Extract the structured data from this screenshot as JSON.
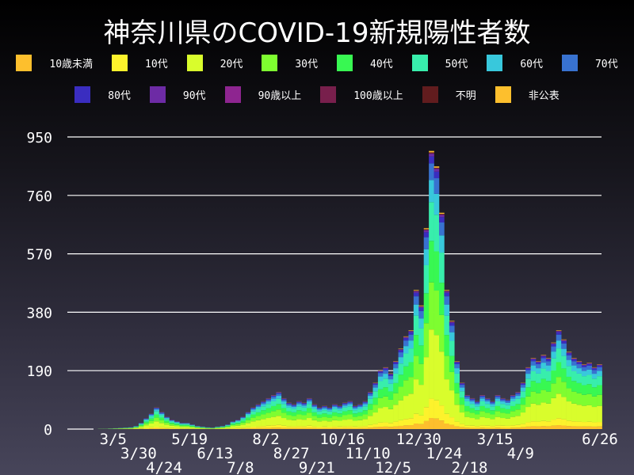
{
  "chart_data": {
    "type": "bar",
    "stacked": true,
    "title": "神奈川県のCOVID-19新規陽性者数",
    "xlabel": "",
    "ylabel": "",
    "ylim": [
      0,
      1000
    ],
    "yticks": [
      0,
      190,
      380,
      570,
      760,
      950
    ],
    "xticks": [
      "3/5",
      "3/30",
      "4/24",
      "5/19",
      "6/13",
      "7/8",
      "8/2",
      "8/27",
      "9/21",
      "10/16",
      "11/10",
      "12/5",
      "12/30",
      "1/24",
      "2/18",
      "3/15",
      "4/9",
      "6/26"
    ],
    "x_start": "2020-01-20",
    "x_end": "2021-06-26",
    "x_step_days": 5,
    "grid": "horizontal",
    "legend_position": "top",
    "totals": [
      0,
      0,
      0,
      0,
      0,
      0,
      1,
      1,
      2,
      3,
      4,
      5,
      6,
      10,
      20,
      35,
      50,
      70,
      55,
      40,
      30,
      25,
      20,
      20,
      15,
      10,
      8,
      6,
      5,
      8,
      10,
      15,
      25,
      30,
      40,
      55,
      70,
      80,
      90,
      100,
      110,
      120,
      100,
      85,
      80,
      90,
      85,
      100,
      80,
      70,
      75,
      70,
      80,
      75,
      85,
      90,
      75,
      80,
      90,
      120,
      150,
      190,
      200,
      180,
      220,
      260,
      300,
      320,
      450,
      400,
      650,
      900,
      850,
      700,
      450,
      350,
      220,
      150,
      110,
      100,
      90,
      110,
      100,
      90,
      110,
      100,
      95,
      110,
      120,
      150,
      200,
      230,
      220,
      240,
      230,
      280,
      320,
      290,
      250,
      230,
      220,
      210,
      215,
      200,
      210
    ],
    "series": [
      {
        "name": "10歳未満",
        "color": "#fdbf2d",
        "share": 0.04
      },
      {
        "name": "10代",
        "color": "#fdf22c",
        "share": 0.07
      },
      {
        "name": "20代",
        "color": "#d9fd2c",
        "share": 0.25
      },
      {
        "name": "30代",
        "color": "#7efd30",
        "share": 0.17
      },
      {
        "name": "40代",
        "color": "#38f852",
        "share": 0.15
      },
      {
        "name": "50代",
        "color": "#38eeac",
        "share": 0.14
      },
      {
        "name": "60代",
        "color": "#38c8dc",
        "share": 0.08
      },
      {
        "name": "70代",
        "color": "#3872d0",
        "share": 0.06
      },
      {
        "name": "80代",
        "color": "#3a2dc0",
        "share": 0.025
      },
      {
        "name": "90代",
        "color": "#6d2ba5",
        "share": 0.01
      },
      {
        "name": "90歳以上",
        "color": "#8e2590",
        "share": 0.0
      },
      {
        "name": "100歳以上",
        "color": "#781f4c",
        "share": 0.003
      },
      {
        "name": "不明",
        "color": "#611c1e",
        "share": 0.002
      },
      {
        "name": "非公表",
        "color": "#fdbf2d",
        "share": 0.005
      }
    ]
  }
}
